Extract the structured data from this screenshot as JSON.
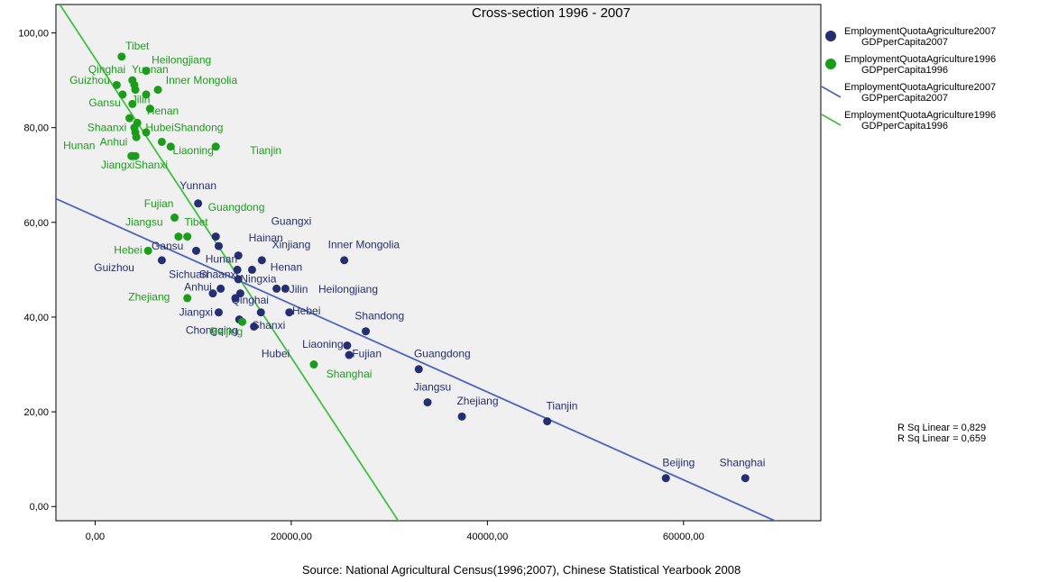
{
  "chart_data": {
    "type": "scatter",
    "title": "Cross-section 1996 - 2007",
    "xlabel": "",
    "ylabel": "",
    "xlim": [
      -4000,
      74000
    ],
    "ylim": [
      -3,
      106
    ],
    "xticks": [
      0,
      20000,
      40000,
      60000
    ],
    "xtick_labels": [
      "0,00",
      "20000,00",
      "40000,00",
      "60000,00"
    ],
    "yticks": [
      0,
      20,
      40,
      60,
      80,
      100
    ],
    "ytick_labels": [
      "0,00",
      "20,00",
      "40,00",
      "60,00",
      "80,00",
      "100,00"
    ],
    "grid": false,
    "legend_position": "right",
    "source": "Source: National Agricultural Census(1996;2007), Chinese Statistical Yearbook 2008",
    "series": [
      {
        "legend": "EmploymentQuotaAgriculture2007",
        "legend_sub": "GDPperCapita2007",
        "color": "#252d73",
        "points": [
          {
            "label": "Yunnan",
            "x": 10500,
            "y": 64
          },
          {
            "label": "Guangxi",
            "x": 12300,
            "y": 57
          },
          {
            "label": "Tibet",
            "x": 12600,
            "y": 55
          },
          {
            "label": "Hainan",
            "x": 14600,
            "y": 53
          },
          {
            "label": "Gansu",
            "x": 10300,
            "y": 54
          },
          {
            "label": "Guizhou",
            "x": 6800,
            "y": 52
          },
          {
            "label": "Xinjiang",
            "x": 17000,
            "y": 52
          },
          {
            "label": "Inner Mongolia",
            "x": 25400,
            "y": 52
          },
          {
            "label": "Hunan",
            "x": 14500,
            "y": 50
          },
          {
            "label": "Henan",
            "x": 16000,
            "y": 50
          },
          {
            "label": "Ningxia",
            "x": 14600,
            "y": 48
          },
          {
            "label": "Sichuan",
            "x": 12800,
            "y": 46
          },
          {
            "label": "Anhui",
            "x": 12000,
            "y": 45
          },
          {
            "label": "Shaanxi",
            "x": 14800,
            "y": 45
          },
          {
            "label": "Jilin",
            "x": 18500,
            "y": 46
          },
          {
            "label": "Heilongjiang",
            "x": 19400,
            "y": 46
          },
          {
            "label": "Qinghai",
            "x": 14300,
            "y": 44
          },
          {
            "label": "Jiangxi",
            "x": 12600,
            "y": 41
          },
          {
            "label": "Shanxi",
            "x": 16900,
            "y": 41
          },
          {
            "label": "Hebei",
            "x": 19800,
            "y": 41
          },
          {
            "label": "Chongqing",
            "x": 14700,
            "y": 39.5
          },
          {
            "label": "Hubei",
            "x": 16200,
            "y": 38
          },
          {
            "label": "Shandong",
            "x": 27600,
            "y": 37
          },
          {
            "label": "Liaoning",
            "x": 25700,
            "y": 34
          },
          {
            "label": "Fujian",
            "x": 25900,
            "y": 32
          },
          {
            "label": "Guangdong",
            "x": 33000,
            "y": 29
          },
          {
            "label": "Jiangsu",
            "x": 33900,
            "y": 22
          },
          {
            "label": "Zhejiang",
            "x": 37400,
            "y": 19
          },
          {
            "label": "Tianjin",
            "x": 46100,
            "y": 18
          },
          {
            "label": "Beijing",
            "x": 58200,
            "y": 6
          },
          {
            "label": "Shanghai",
            "x": 66300,
            "y": 6
          }
        ]
      },
      {
        "legend": "EmploymentQuotaAgriculture1996",
        "legend_sub": "GDPperCapita1996",
        "color": "#199e19",
        "points": [
          {
            "label": "Tibet",
            "x": 2700,
            "y": 95
          },
          {
            "label": "Heilongjiang",
            "x": 5200,
            "y": 92
          },
          {
            "label": "Qinghai",
            "x": 3800,
            "y": 90
          },
          {
            "label": "Yunnan",
            "x": 4000,
            "y": 89
          },
          {
            "label": "Guizhou",
            "x": 2200,
            "y": 89
          },
          {
            "label": "Inner Mongolia",
            "x": 6400,
            "y": 88
          },
          {
            "label": "Gansu",
            "x": 2800,
            "y": 87
          },
          {
            "label": "Jilin",
            "x": 5200,
            "y": 87
          },
          {
            "label": "Henan",
            "x": 4100,
            "y": 88
          },
          {
            "label": "Guangxi",
            "x": 3800,
            "y": 85
          },
          {
            "label": "Sichuan",
            "x": 5600,
            "y": 84
          },
          {
            "label": "Hainan",
            "x": 3500,
            "y": 82
          },
          {
            "label": "Shaanxi",
            "x": 4000,
            "y": 80
          },
          {
            "label": "Hubei",
            "x": 5200,
            "y": 79
          },
          {
            "label": "Ningxia",
            "x": 4300,
            "y": 81
          },
          {
            "label": "Xinjiang",
            "x": 4200,
            "y": 78
          },
          {
            "label": "Shandong",
            "x": 6800,
            "y": 77
          },
          {
            "label": "Hunan",
            "x": 4100,
            "y": 79
          },
          {
            "label": "Hebei",
            "x": 7700,
            "y": 76
          },
          {
            "label": "Liaoning",
            "x": 12300,
            "y": 76
          },
          {
            "label": "Anhui",
            "x": 3700,
            "y": 74
          },
          {
            "label": "Jiangxi",
            "x": 4100,
            "y": 74
          },
          {
            "label": "Shanxi",
            "x": 3800,
            "y": 74
          },
          {
            "label": "Fujian",
            "x": 8100,
            "y": 61
          },
          {
            "label": "Jiangsu",
            "x": 8500,
            "y": 57
          },
          {
            "label": "Tibet2",
            "x": 9400,
            "y": 57
          },
          {
            "label": "Hebei2",
            "x": 5400,
            "y": 54
          },
          {
            "label": "Zhejiang",
            "x": 9400,
            "y": 44
          },
          {
            "label": "Beijing",
            "x": 15000,
            "y": 39
          },
          {
            "label": "Shanghai",
            "x": 22300,
            "y": 30
          }
        ]
      }
    ],
    "fit_lines": [
      {
        "series": "2007",
        "color": "#4a63c4",
        "x1": -4000,
        "y1": 65.0,
        "x2": 72000,
        "y2": -5.5,
        "legend": "EmploymentQuotaAgriculture2007",
        "legend_sub": "GDPperCapita2007"
      },
      {
        "series": "1996",
        "color": "#3fc13f",
        "x1": -3600,
        "y1": 106,
        "x2": 31700,
        "y2": -5.5,
        "legend": "EmploymentQuotaAgriculture1996",
        "legend_sub": "GDPperCapita1996"
      }
    ],
    "r_squared": [
      "R Sq Linear = 0,829",
      "R Sq Linear = 0,659"
    ],
    "labels_2007": [
      {
        "text": "Yunnan",
        "x": 10500,
        "y": 67,
        "anchor": "middle"
      },
      {
        "text": "Guangxi",
        "x": 20000,
        "y": 59.5,
        "anchor": "middle"
      },
      {
        "text": "Hainan",
        "x": 17400,
        "y": 56,
        "anchor": "middle"
      },
      {
        "text": "Xinjiang",
        "x": 20000,
        "y": 54.5,
        "anchor": "middle"
      },
      {
        "text": "Inner Mongolia",
        "x": 27400,
        "y": 54.5,
        "anchor": "middle"
      },
      {
        "text": "Gansu",
        "x": 9000,
        "y": 54.3,
        "anchor": "end"
      },
      {
        "text": "Hunan",
        "x": 14500,
        "y": 51.5,
        "anchor": "end"
      },
      {
        "text": "Guizhou",
        "x": 4000,
        "y": 49.7,
        "anchor": "end"
      },
      {
        "text": "Henan",
        "x": 19500,
        "y": 49.8,
        "anchor": "middle"
      },
      {
        "text": "Sichuan",
        "x": 11500,
        "y": 48.3,
        "anchor": "end"
      },
      {
        "text": "Shaanxi",
        "x": 14600,
        "y": 48.3,
        "anchor": "end"
      },
      {
        "text": "Ningxia",
        "x": 14800,
        "y": 47.3,
        "anchor": "start"
      },
      {
        "text": "Anhui",
        "x": 11900,
        "y": 45.6,
        "anchor": "end"
      },
      {
        "text": "Jilin",
        "x": 19800,
        "y": 45.1,
        "anchor": "start"
      },
      {
        "text": "Heilongjiang",
        "x": 25800,
        "y": 45.1,
        "anchor": "middle"
      },
      {
        "text": "Qinghai",
        "x": 15800,
        "y": 42.8,
        "anchor": "middle"
      },
      {
        "text": "Hebei",
        "x": 20100,
        "y": 40.6,
        "anchor": "start"
      },
      {
        "text": "Jiangxi",
        "x": 12000,
        "y": 40.3,
        "anchor": "end"
      },
      {
        "text": "Shandong",
        "x": 29000,
        "y": 39.5,
        "anchor": "middle"
      },
      {
        "text": "Shanxi",
        "x": 17700,
        "y": 37.5,
        "anchor": "middle"
      },
      {
        "text": "Chongqing",
        "x": 11900,
        "y": 36.5,
        "anchor": "middle"
      },
      {
        "text": "Liaoning",
        "x": 25300,
        "y": 33.5,
        "anchor": "end"
      },
      {
        "text": "Fujian",
        "x": 26200,
        "y": 31.5,
        "anchor": "start"
      },
      {
        "text": "Hubei",
        "x": 18400,
        "y": 31.5,
        "anchor": "middle"
      },
      {
        "text": "Guangdong",
        "x": 35400,
        "y": 31.5,
        "anchor": "middle"
      },
      {
        "text": "Jiangsu",
        "x": 34400,
        "y": 24.5,
        "anchor": "middle"
      },
      {
        "text": "Zhejiang",
        "x": 39000,
        "y": 21.5,
        "anchor": "middle"
      },
      {
        "text": "Tianjin",
        "x": 47600,
        "y": 20.5,
        "anchor": "middle"
      },
      {
        "text": "Beijing",
        "x": 59500,
        "y": 8.5,
        "anchor": "middle"
      },
      {
        "text": "Shanghai",
        "x": 66000,
        "y": 8.5,
        "anchor": "middle"
      }
    ],
    "labels_1996": [
      {
        "text": "Tibet",
        "x": 4300,
        "y": 96.5,
        "anchor": "middle"
      },
      {
        "text": "Heilongjiang",
        "x": 8800,
        "y": 93.5,
        "anchor": "middle"
      },
      {
        "text": "Qinghai",
        "x": 1200,
        "y": 91.5,
        "anchor": "middle"
      },
      {
        "text": "Yunnan",
        "x": 5600,
        "y": 91.5,
        "anchor": "middle"
      },
      {
        "text": "Guizhou",
        "x": 1500,
        "y": 89.3,
        "anchor": "end"
      },
      {
        "text": "Inner Mongolia",
        "x": 7200,
        "y": 89.3,
        "anchor": "start"
      },
      {
        "text": "Gansu",
        "x": 2600,
        "y": 84.5,
        "anchor": "end"
      },
      {
        "text": "Jilin",
        "x": 3700,
        "y": 85.2,
        "anchor": "start"
      },
      {
        "text": "Henan",
        "x": 6900,
        "y": 82.8,
        "anchor": "middle"
      },
      {
        "text": "Shaanxi",
        "x": 3200,
        "y": 79.3,
        "anchor": "end"
      },
      {
        "text": "HubeiShandong",
        "x": 9100,
        "y": 79.3,
        "anchor": "middle"
      },
      {
        "text": "Hunan",
        "x": 0,
        "y": 75.5,
        "anchor": "end"
      },
      {
        "text": "Anhui",
        "x": 3300,
        "y": 76.2,
        "anchor": "end"
      },
      {
        "text": "Liaoning",
        "x": 10000,
        "y": 74.4,
        "anchor": "middle"
      },
      {
        "text": "Tianjin",
        "x": 17400,
        "y": 74.4,
        "anchor": "middle"
      },
      {
        "text": "JiangxiShanxi",
        "x": 4000,
        "y": 71.4,
        "anchor": "middle"
      },
      {
        "text": "Guangdong",
        "x": 14400,
        "y": 62.4,
        "anchor": "middle"
      },
      {
        "text": "Fujian",
        "x": 6500,
        "y": 63.2,
        "anchor": "middle"
      },
      {
        "text": "Jiangsu",
        "x": 5000,
        "y": 59.3,
        "anchor": "middle"
      },
      {
        "text": "Tibet",
        "x": 10300,
        "y": 59.3,
        "anchor": "middle"
      },
      {
        "text": "Hebei",
        "x": 4800,
        "y": 53.4,
        "anchor": "end"
      },
      {
        "text": "Zhejiang",
        "x": 5500,
        "y": 43.5,
        "anchor": "middle"
      },
      {
        "text": "Beijing",
        "x": 13400,
        "y": 36.2,
        "anchor": "middle"
      },
      {
        "text": "Shanghai",
        "x": 25900,
        "y": 27.2,
        "anchor": "middle"
      }
    ]
  }
}
